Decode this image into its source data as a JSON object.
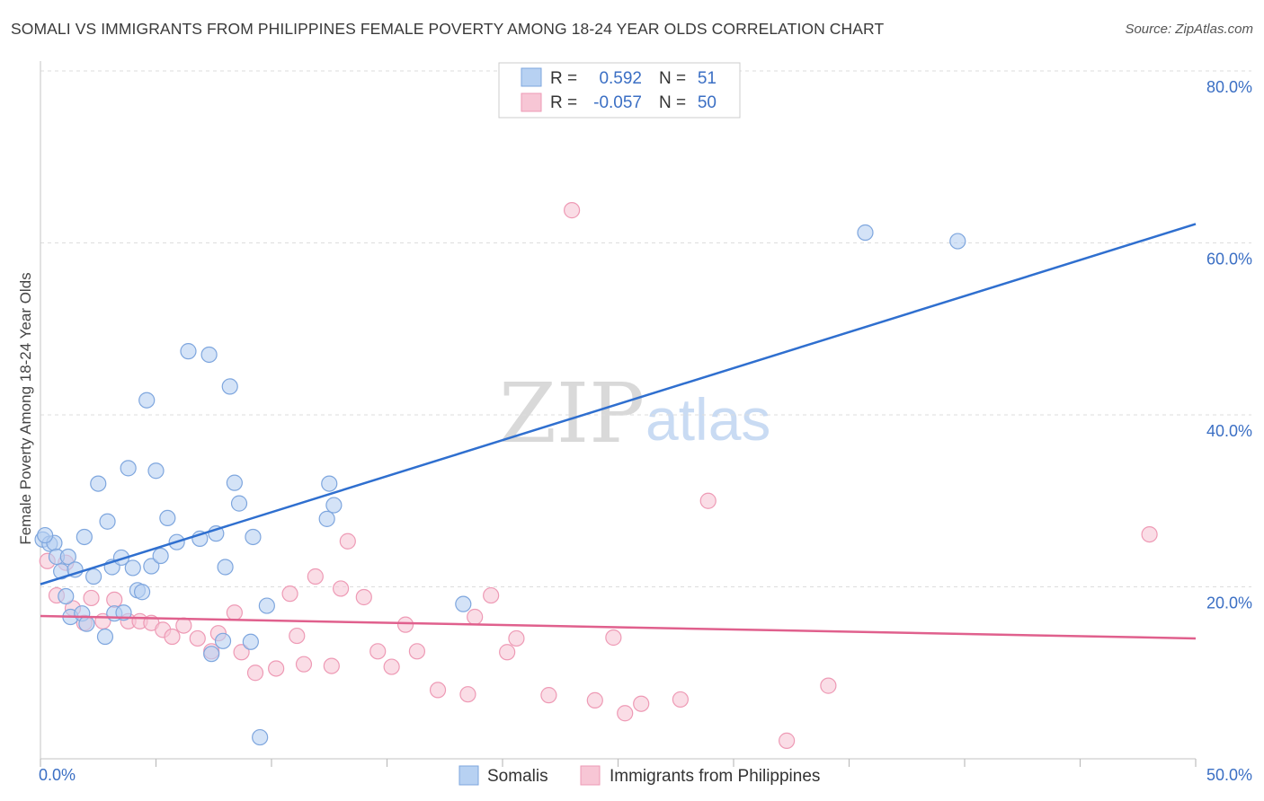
{
  "title": "SOMALI VS IMMIGRANTS FROM PHILIPPINES FEMALE POVERTY AMONG 18-24 YEAR OLDS CORRELATION CHART",
  "source": "Source: ZipAtlas.com",
  "watermark": {
    "zip": "ZIP",
    "atlas": "atlas"
  },
  "legend": {
    "rows": [
      {
        "r_label": "R =",
        "r_value": "0.592",
        "n_label": "N =",
        "n_value": "51"
      },
      {
        "r_label": "R =",
        "r_value": "-0.057",
        "n_label": "N =",
        "n_value": "50"
      }
    ]
  },
  "bottom_legend": [
    "Somalis",
    "Immigrants from Philippines"
  ],
  "colors": {
    "somalis_fill": "#b7d1f2",
    "somalis_stroke": "#7ea6de",
    "somalis_line": "#2f6fcf",
    "phil_fill": "#f7c6d5",
    "phil_stroke": "#ee9ab5",
    "phil_line": "#e0608d",
    "tick_text": "#3b6fc4",
    "grid": "#dddddd"
  },
  "chart_data": {
    "type": "scatter",
    "title": "SOMALI VS IMMIGRANTS FROM PHILIPPINES FEMALE POVERTY AMONG 18-24 YEAR OLDS CORRELATION CHART",
    "xlabel": "",
    "ylabel": "Female Poverty Among 18-24 Year Olds",
    "xlim": [
      0,
      50
    ],
    "ylim": [
      0,
      80
    ],
    "x_tick_labels": [
      "0.0%",
      "50.0%"
    ],
    "y_ticks": [
      20,
      40,
      60,
      80
    ],
    "y_tick_labels": [
      "20.0%",
      "40.0%",
      "60.0%",
      "80.0%"
    ],
    "series": [
      {
        "name": "Somalis",
        "r": 0.592,
        "n": 51,
        "trend": {
          "x": [
            0,
            50
          ],
          "y": [
            20.3,
            62.2
          ]
        },
        "points": [
          [
            0.1,
            25.5
          ],
          [
            0.4,
            25.0
          ],
          [
            0.6,
            25.1
          ],
          [
            0.7,
            23.5
          ],
          [
            0.9,
            21.8
          ],
          [
            1.1,
            18.9
          ],
          [
            1.2,
            23.5
          ],
          [
            1.3,
            16.5
          ],
          [
            1.5,
            22.0
          ],
          [
            1.8,
            16.9
          ],
          [
            1.9,
            25.8
          ],
          [
            2.0,
            15.7
          ],
          [
            2.3,
            21.2
          ],
          [
            2.5,
            32.0
          ],
          [
            2.8,
            14.2
          ],
          [
            2.9,
            27.6
          ],
          [
            3.1,
            22.3
          ],
          [
            3.2,
            16.9
          ],
          [
            3.5,
            23.4
          ],
          [
            3.6,
            17.0
          ],
          [
            3.8,
            33.8
          ],
          [
            4.0,
            22.2
          ],
          [
            4.2,
            19.6
          ],
          [
            4.4,
            19.4
          ],
          [
            4.6,
            41.7
          ],
          [
            4.8,
            22.4
          ],
          [
            5.0,
            33.5
          ],
          [
            5.2,
            23.6
          ],
          [
            5.5,
            28.0
          ],
          [
            5.9,
            25.2
          ],
          [
            6.4,
            47.4
          ],
          [
            6.9,
            25.6
          ],
          [
            7.3,
            47.0
          ],
          [
            7.4,
            12.2
          ],
          [
            7.6,
            26.2
          ],
          [
            7.9,
            13.7
          ],
          [
            8.0,
            22.3
          ],
          [
            8.2,
            43.3
          ],
          [
            8.4,
            32.1
          ],
          [
            8.6,
            29.7
          ],
          [
            9.1,
            13.6
          ],
          [
            9.2,
            25.8
          ],
          [
            9.5,
            2.5
          ],
          [
            9.8,
            17.8
          ],
          [
            12.4,
            27.9
          ],
          [
            12.5,
            32.0
          ],
          [
            12.7,
            29.5
          ],
          [
            18.3,
            18.0
          ],
          [
            35.7,
            61.2
          ],
          [
            39.7,
            60.2
          ],
          [
            0.2,
            26.0
          ]
        ]
      },
      {
        "name": "Immigrants from Philippines",
        "r": -0.057,
        "n": 50,
        "trend": {
          "x": [
            0,
            50
          ],
          "y": [
            16.6,
            14.0
          ]
        },
        "points": [
          [
            0.3,
            23.0
          ],
          [
            0.7,
            19.0
          ],
          [
            1.1,
            22.8
          ],
          [
            1.4,
            17.5
          ],
          [
            1.9,
            15.8
          ],
          [
            2.2,
            18.7
          ],
          [
            2.7,
            16.0
          ],
          [
            3.2,
            18.5
          ],
          [
            3.8,
            16.0
          ],
          [
            4.3,
            16.0
          ],
          [
            4.8,
            15.8
          ],
          [
            5.3,
            15.0
          ],
          [
            5.7,
            14.2
          ],
          [
            6.2,
            15.5
          ],
          [
            6.8,
            14.0
          ],
          [
            7.4,
            12.5
          ],
          [
            7.7,
            14.6
          ],
          [
            8.4,
            17.0
          ],
          [
            8.7,
            12.4
          ],
          [
            9.3,
            10.0
          ],
          [
            10.2,
            10.5
          ],
          [
            10.8,
            19.2
          ],
          [
            11.1,
            14.3
          ],
          [
            11.4,
            11.0
          ],
          [
            11.9,
            21.2
          ],
          [
            12.6,
            10.8
          ],
          [
            13.0,
            19.8
          ],
          [
            13.3,
            25.3
          ],
          [
            14.0,
            18.8
          ],
          [
            14.6,
            12.5
          ],
          [
            15.2,
            10.7
          ],
          [
            15.8,
            15.6
          ],
          [
            16.3,
            12.5
          ],
          [
            17.2,
            8.0
          ],
          [
            18.5,
            7.5
          ],
          [
            18.8,
            16.5
          ],
          [
            19.5,
            19.0
          ],
          [
            20.2,
            12.4
          ],
          [
            20.6,
            14.0
          ],
          [
            22.0,
            7.4
          ],
          [
            23.0,
            63.8
          ],
          [
            24.0,
            6.8
          ],
          [
            24.8,
            14.1
          ],
          [
            25.3,
            5.3
          ],
          [
            26.0,
            6.4
          ],
          [
            27.7,
            6.9
          ],
          [
            28.9,
            30.0
          ],
          [
            32.3,
            2.1
          ],
          [
            34.1,
            8.5
          ],
          [
            48.0,
            26.1
          ]
        ]
      }
    ]
  }
}
